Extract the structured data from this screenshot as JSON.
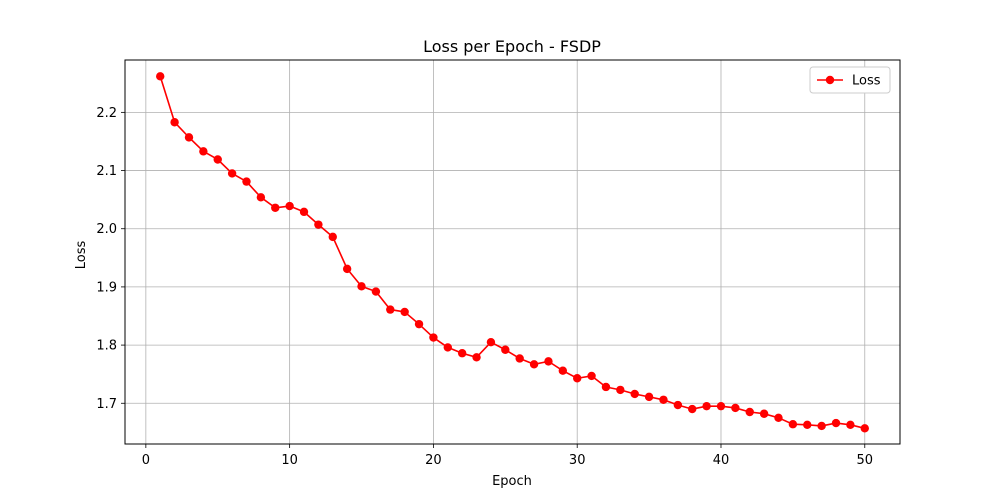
{
  "chart_data": {
    "type": "line",
    "title": "Loss per Epoch - FSDP",
    "xlabel": "Epoch",
    "ylabel": "Loss",
    "xlim": [
      -1.45,
      52.45
    ],
    "ylim": [
      1.63,
      2.29
    ],
    "xticks": [
      0,
      10,
      20,
      30,
      40,
      50
    ],
    "yticks": [
      1.7,
      1.8,
      1.9,
      2.0,
      2.1,
      2.2
    ],
    "ytick_labels": [
      "1.7",
      "1.8",
      "1.9",
      "2.0",
      "2.1",
      "2.2"
    ],
    "grid": true,
    "legend_position": "top-right",
    "series": [
      {
        "name": "Loss",
        "color": "#ff0000",
        "marker": "circle",
        "x": [
          1,
          2,
          3,
          4,
          5,
          6,
          7,
          8,
          9,
          10,
          11,
          12,
          13,
          14,
          15,
          16,
          17,
          18,
          19,
          20,
          21,
          22,
          23,
          24,
          25,
          26,
          27,
          28,
          29,
          30,
          31,
          32,
          33,
          34,
          35,
          36,
          37,
          38,
          39,
          40,
          41,
          42,
          43,
          44,
          45,
          46,
          47,
          48,
          49,
          50
        ],
        "values": [
          2.262,
          2.183,
          2.157,
          2.133,
          2.119,
          2.095,
          2.081,
          2.054,
          2.036,
          2.039,
          2.029,
          2.007,
          1.986,
          1.931,
          1.901,
          1.892,
          1.861,
          1.857,
          1.836,
          1.813,
          1.796,
          1.786,
          1.779,
          1.805,
          1.792,
          1.777,
          1.767,
          1.772,
          1.756,
          1.743,
          1.747,
          1.728,
          1.723,
          1.716,
          1.711,
          1.706,
          1.697,
          1.69,
          1.695,
          1.695,
          1.692,
          1.685,
          1.682,
          1.675,
          1.664,
          1.663,
          1.661,
          1.666,
          1.663,
          1.657
        ]
      }
    ]
  }
}
